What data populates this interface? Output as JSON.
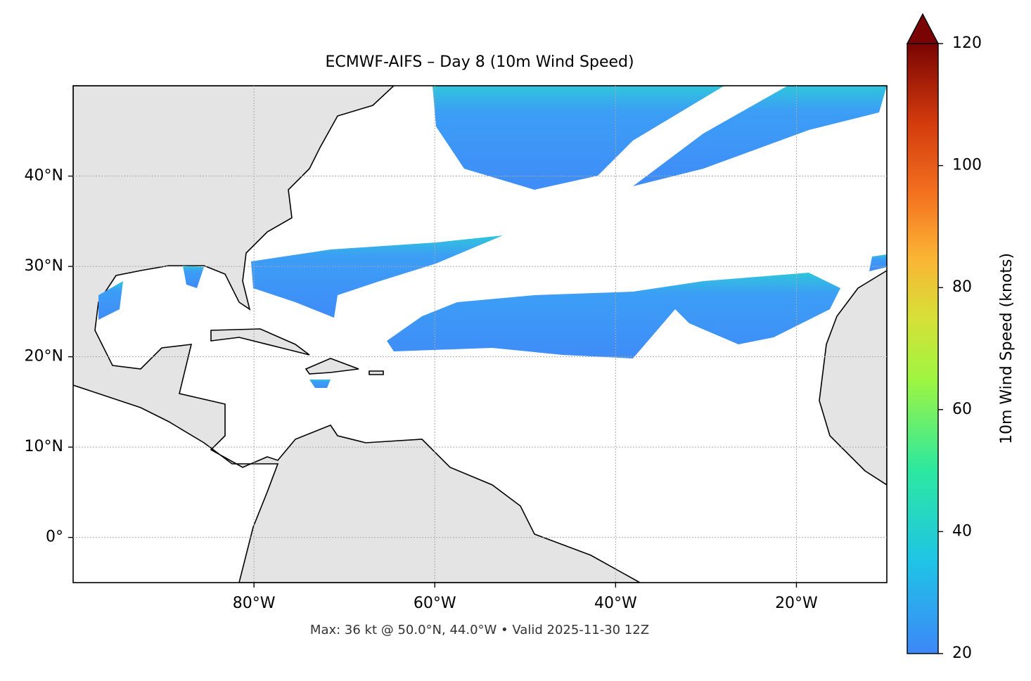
{
  "chart_data": {
    "type": "map",
    "title": "ECMWF-AIFS – Day 8 (10m Wind Speed)",
    "xlim": [
      -100,
      -10
    ],
    "ylim": [
      -5,
      50
    ],
    "xticks": [
      {
        "value": -80,
        "label": "80°W"
      },
      {
        "value": -60,
        "label": "60°W"
      },
      {
        "value": -40,
        "label": "40°W"
      },
      {
        "value": -20,
        "label": "20°W"
      }
    ],
    "yticks": [
      {
        "value": 0,
        "label": "0°"
      },
      {
        "value": 10,
        "label": "10°N"
      },
      {
        "value": 20,
        "label": "20°N"
      },
      {
        "value": 30,
        "label": "30°N"
      },
      {
        "value": 40,
        "label": "40°N"
      }
    ],
    "grid": true,
    "colorbar": {
      "label": "10m Wind Speed (knots)",
      "lim": [
        20,
        120
      ],
      "ticks": [
        20,
        40,
        60,
        80,
        100,
        120
      ]
    },
    "footer": "Max: 36 kt @ 50.0°N, 44.0°W • Valid 2025-11-30 12Z"
  }
}
